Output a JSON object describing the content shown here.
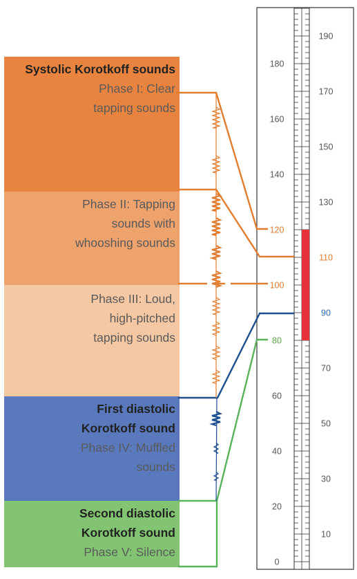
{
  "phases": [
    {
      "id": "p1",
      "title": "Systolic Korotkoff sounds",
      "desc": "Phase I: Clear\ntapping sounds"
    },
    {
      "id": "p2",
      "title": "",
      "desc": "Phase II: Tapping\nsounds with\nwhooshing sounds"
    },
    {
      "id": "p3",
      "title": "",
      "desc": "Phase III: Loud,\nhigh-pitched\ntapping sounds"
    },
    {
      "id": "p4",
      "title": "First diastolic\nKorotkoff sound",
      "desc": "Phase IV: Muffled\nsounds"
    },
    {
      "id": "p5",
      "title": "Second diastolic\nKorotkoff sound",
      "desc": "Phase V: Silence"
    }
  ],
  "left_scale_labels": [
    "0",
    "20",
    "40",
    "60",
    "80",
    "100",
    "120",
    "140",
    "160",
    "180"
  ],
  "right_scale_labels": [
    "10",
    "30",
    "50",
    "70",
    "90",
    "110",
    "130",
    "150",
    "170",
    "190"
  ],
  "highlighted_labels": [
    {
      "value": "120",
      "color": "#e27d2e"
    },
    {
      "value": "100",
      "color": "#e27d2e"
    },
    {
      "value": "80",
      "color": "#5aa84a"
    },
    {
      "value": "110",
      "color": "#e27d2e"
    },
    {
      "value": "90",
      "color": "#2a6ab3"
    }
  ],
  "mercury_column": {
    "from": 80,
    "to": 120,
    "color": "#e8303a"
  },
  "colors": {
    "phase1": "#e8843f",
    "phase2": "#eea36d",
    "phase3": "#f5c8a3",
    "phase4": "#5a79bd",
    "phase5": "#82c472",
    "orange_line": "#e27d2e",
    "blue_line": "#1e4f8f",
    "green_line": "#5ab35a"
  }
}
